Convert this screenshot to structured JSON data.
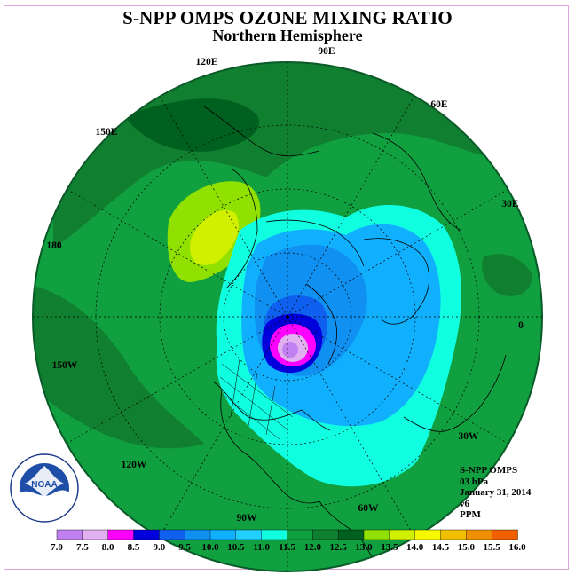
{
  "title": "S-NPP OMPS OZONE MIXING RATIO",
  "subtitle": "Northern Hemisphere",
  "longitude_labels": [
    {
      "id": "lon-90e",
      "text": "90E"
    },
    {
      "id": "lon-60e",
      "text": "60E"
    },
    {
      "id": "lon-30e",
      "text": "30E"
    },
    {
      "id": "lon-0",
      "text": "0"
    },
    {
      "id": "lon-30w",
      "text": "30W"
    },
    {
      "id": "lon-60w",
      "text": "60W"
    },
    {
      "id": "lon-90w",
      "text": "90W"
    },
    {
      "id": "lon-120w",
      "text": "120W"
    },
    {
      "id": "lon-150w",
      "text": "150W"
    },
    {
      "id": "lon-180",
      "text": "180"
    },
    {
      "id": "lon-150e",
      "text": "150E"
    },
    {
      "id": "lon-120e",
      "text": "120E"
    }
  ],
  "info": {
    "instrument": "S-NPP OMPS",
    "level": "03 hPa",
    "date": "January 31, 2014",
    "version": "v6",
    "units": "PPM"
  },
  "colorbar": {
    "labels": [
      "7.0",
      "7.5",
      "8.0",
      "8.5",
      "9.0",
      "9.5",
      "10.0",
      "10.5",
      "11.0",
      "11.5",
      "12.0",
      "12.5",
      "13.0",
      "13.5",
      "14.0",
      "14.5",
      "15.0",
      "15.5",
      "16.0"
    ],
    "colors": [
      "#c080f0",
      "#e0b0f0",
      "#ff00ff",
      "#0000dd",
      "#1060f0",
      "#1090f0",
      "#10b0ff",
      "#20d0ff",
      "#10ffe0",
      "#10a040",
      "#108030",
      "#006020",
      "#90e000",
      "#d0f000",
      "#f8f800",
      "#f0c000",
      "#f09000",
      "#f06000",
      "#e00000",
      "#e02040",
      "#8b5a3c"
    ]
  },
  "logo": {
    "text": "NOAA"
  }
}
